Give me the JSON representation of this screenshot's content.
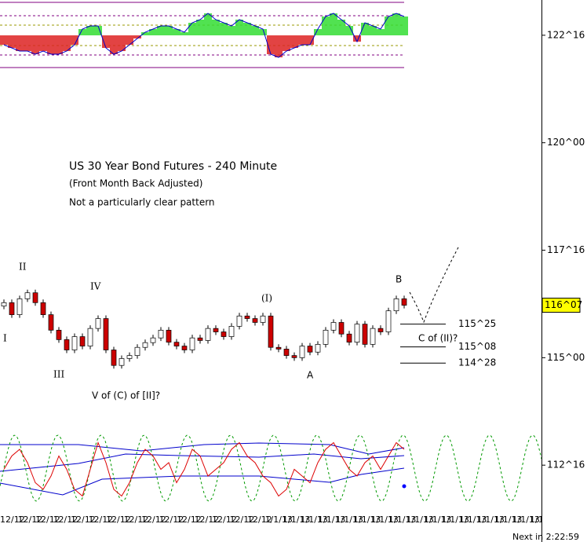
{
  "chart_data": {
    "type": "candlestick",
    "title": "US 30 Year Bond Futures - 240 Minute",
    "subtitle": "(Front Month Back Adjusted)",
    "note": "Not a particularly clear pattern",
    "ylim": [
      111.48,
      123.32
    ],
    "yticks": [
      {
        "value": 122.5,
        "label": "122^16"
      },
      {
        "value": 120,
        "label": "120^00"
      },
      {
        "value": 117.5,
        "label": "117^16"
      },
      {
        "value": 115,
        "label": "115^00"
      },
      {
        "value": 112.5,
        "label": "112^16"
      }
    ],
    "last_price": {
      "value": 116.22,
      "label": "116^07"
    },
    "open": [
      116.2,
      116.28,
      116.0,
      116.37,
      116.51,
      116.28,
      116.0,
      115.64,
      115.42,
      115.18,
      115.49,
      115.27,
      115.68,
      115.91,
      115.18,
      114.82,
      114.98,
      115.05,
      115.24,
      115.35,
      115.46,
      115.64,
      115.36,
      115.27,
      115.18,
      115.46,
      115.4,
      115.68,
      115.6,
      115.49,
      115.73,
      115.97,
      115.91,
      115.82,
      115.97,
      115.24,
      115.2,
      115.05,
      115.0,
      115.27,
      115.13,
      115.31,
      115.64,
      115.82,
      115.55,
      115.36,
      115.78,
      115.31,
      115.68,
      115.6,
      116.09,
      116.37
    ],
    "close": [
      116.28,
      116.0,
      116.37,
      116.51,
      116.28,
      116.0,
      115.64,
      115.42,
      115.18,
      115.49,
      115.27,
      115.68,
      115.91,
      115.18,
      114.82,
      114.98,
      115.05,
      115.24,
      115.35,
      115.46,
      115.64,
      115.36,
      115.27,
      115.18,
      115.46,
      115.4,
      115.68,
      115.6,
      115.49,
      115.73,
      115.97,
      115.91,
      115.82,
      115.97,
      115.24,
      115.2,
      115.05,
      115.0,
      115.27,
      115.13,
      115.31,
      115.64,
      115.82,
      115.55,
      115.36,
      115.78,
      115.31,
      115.68,
      115.6,
      116.09,
      116.37,
      116.22
    ],
    "oscillator": [
      -0.3,
      -0.4,
      -0.5,
      -0.5,
      -0.6,
      -0.5,
      -0.6,
      -0.6,
      -0.5,
      -0.3,
      0.2,
      0.3,
      0.3,
      -0.4,
      -0.6,
      -0.5,
      -0.3,
      -0.1,
      0.1,
      0.2,
      0.3,
      0.3,
      0.2,
      0.1,
      0.4,
      0.5,
      0.7,
      0.5,
      0.4,
      0.3,
      0.5,
      0.4,
      0.3,
      0.2,
      -0.6,
      -0.7,
      -0.5,
      -0.4,
      -0.3,
      -0.3,
      0.2,
      0.6,
      0.7,
      0.5,
      0.3,
      -0.2,
      0.4,
      0.3,
      0.2,
      0.6,
      0.7,
      0.6
    ],
    "cycle_line": [
      0.5,
      0.7,
      0.8,
      0.6,
      0.3,
      0.2,
      0.4,
      0.7,
      0.5,
      0.2,
      0.1,
      0.5,
      0.9,
      0.6,
      0.2,
      0.1,
      0.3,
      0.6,
      0.8,
      0.7,
      0.5,
      0.6,
      0.3,
      0.5,
      0.8,
      0.7,
      0.4,
      0.5,
      0.6,
      0.8,
      0.9,
      0.7,
      0.6,
      0.4,
      0.3,
      0.1,
      0.2,
      0.5,
      0.4,
      0.3,
      0.6,
      0.8,
      0.9,
      0.7,
      0.5,
      0.4,
      0.6,
      0.7,
      0.5,
      0.7,
      0.9,
      0.8
    ],
    "targets": [
      {
        "value": 115.78,
        "label": "115^25"
      },
      {
        "value": 115.25,
        "label": "115^08"
      },
      {
        "value": 114.875,
        "label": "114^28"
      }
    ],
    "wave_labels": [
      "I",
      "II",
      "III",
      "IV",
      "V of (C) of [II]?",
      "(I)",
      "A",
      "B",
      "C of (II)?"
    ],
    "x_labels": [
      "12/12",
      "12/12",
      "12/12",
      "12/12",
      "12/12",
      "12/12",
      "12/12",
      "12/12",
      "12/12",
      "12/12",
      "12/12",
      "12/12",
      "12/12",
      "12/12",
      "12/12",
      "1/1/13",
      "1/1/13",
      "1/1/13",
      "1/1/13",
      "1/1/13",
      "1/1/13",
      "1/1/13",
      "1/1/13",
      "1/1/13",
      "1/1/13",
      "1/1/13",
      "1/1/13",
      "1/1/13",
      "1/1/13",
      "1/1/13",
      "1/1/13"
    ],
    "countdown": "Next in 2:22:59"
  }
}
